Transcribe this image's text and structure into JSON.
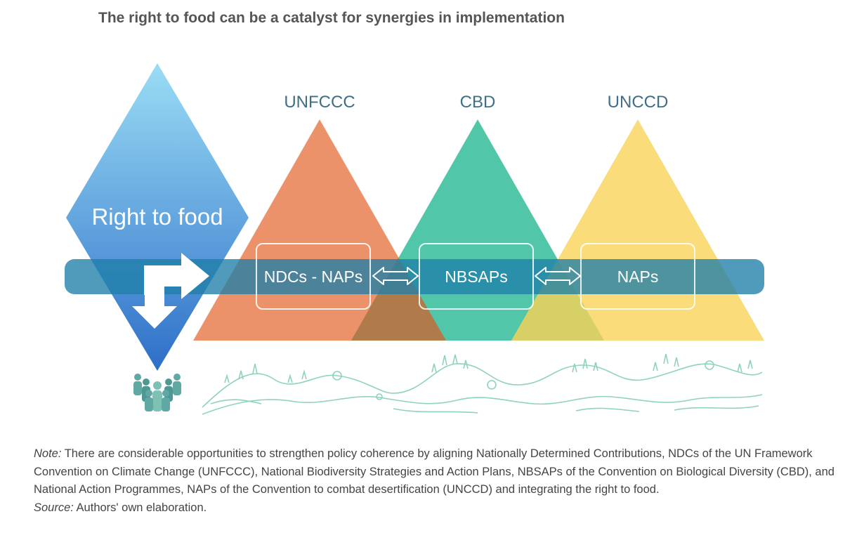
{
  "title": "The right to food can be a catalyst for synergies in implementation",
  "diamond_label": "Right to food",
  "conventions": [
    {
      "name": "UNFCCC",
      "plan": "NDCs - NAPs",
      "color": "#EB8A60"
    },
    {
      "name": "CBD",
      "plan": "NBSAPs",
      "color": "#3FC0A0"
    },
    {
      "name": "UNCCD",
      "plan": "NAPs",
      "color": "#F9D768"
    }
  ],
  "colors": {
    "band": "#1F7FA8",
    "diamond_top": "#9ADDF5",
    "diamond_bottom": "#2E6FC8",
    "landscape": "#8FD2C0",
    "people": "#5FA8A3"
  },
  "icons": [
    "right-arrow-icon",
    "down-arrow-icon",
    "double-arrow-icon",
    "people-icon",
    "landscape-illustration"
  ],
  "note": {
    "label": "Note:",
    "text": " There are considerable opportunities to strengthen policy coherence by aligning Nationally Determined Contributions, NDCs of the UN Framework Convention on Climate Change (UNFCCC), National Biodiversity Strategies and Action Plans, NBSAPs of the Convention on Biological Diversity (CBD), and National Action Programmes, NAPs of the Convention to combat desertification (UNCCD) and integrating the right to food."
  },
  "source": {
    "label": "Source:",
    "text": " Authors' own elaboration."
  }
}
